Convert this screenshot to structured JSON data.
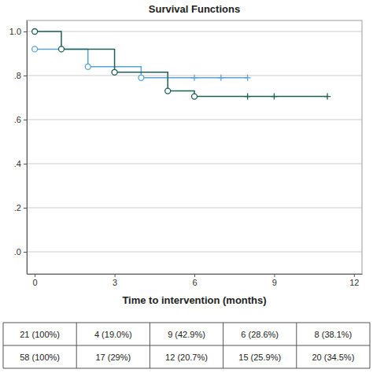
{
  "chart_data": {
    "type": "step",
    "title": "Survival Functions",
    "x_label": "Time to intervention (months)",
    "xlim": [
      -0.3,
      12.3
    ],
    "xticks": [
      0,
      3,
      6,
      9,
      12
    ],
    "ylim": [
      -0.1,
      1.05
    ],
    "yticks": [
      {
        "value": 0,
        "label": ".0"
      },
      {
        "value": 0.2,
        "label": ".2"
      },
      {
        "value": 0.4,
        "label": ".4"
      },
      {
        "value": 0.6,
        "label": ".6"
      },
      {
        "value": 0.8,
        "label": ".8"
      },
      {
        "value": 1,
        "label": "1.0"
      }
    ],
    "grid": true,
    "series": [
      {
        "color": "#5aa5d8",
        "marker": "circle",
        "x": [
          0,
          2,
          4
        ],
        "values": [
          0.92,
          0.84,
          0.79
        ],
        "censor_x": [
          1,
          6,
          7,
          8
        ],
        "censor_values": [
          0.92,
          0.79,
          0.79,
          0.79
        ]
      },
      {
        "color": "#1f5f55",
        "marker": "circle",
        "x": [
          0,
          1,
          3,
          5,
          6
        ],
        "values": [
          1.0,
          0.92,
          0.815,
          0.73,
          0.705
        ],
        "censor_x": [
          8,
          9,
          11
        ],
        "censor_values": [
          0.705,
          0.705,
          0.705
        ]
      }
    ]
  },
  "table": {
    "rows": [
      [
        "21 (100%)",
        "4 (19.0%)",
        "9 (42.9%)",
        "6 (28.6%)",
        "8 (38.1%)"
      ],
      [
        "58 (100%)",
        "17 (29%)",
        "12 (20.7%)",
        "15 (25.9%)",
        "20 (34.5%)"
      ]
    ]
  }
}
